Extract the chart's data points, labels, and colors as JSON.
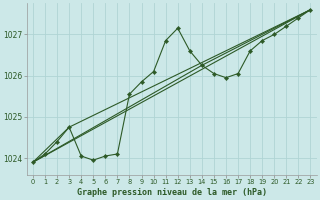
{
  "title": "Graphe pression niveau de la mer (hPa)",
  "bg_color": "#cce8e8",
  "grid_color": "#b0d4d4",
  "line_color": "#2d5a27",
  "marker_color": "#2d5a27",
  "xlim": [
    -0.5,
    23.5
  ],
  "ylim": [
    1023.6,
    1027.75
  ],
  "yticks": [
    1024,
    1025,
    1026,
    1027
  ],
  "xticks": [
    0,
    1,
    2,
    3,
    4,
    5,
    6,
    7,
    8,
    9,
    10,
    11,
    12,
    13,
    14,
    15,
    16,
    17,
    18,
    19,
    20,
    21,
    22,
    23
  ],
  "main_line": [
    [
      0,
      1023.9
    ],
    [
      1,
      1024.1
    ],
    [
      2,
      1024.4
    ],
    [
      3,
      1024.75
    ],
    [
      4,
      1024.05
    ],
    [
      5,
      1023.95
    ],
    [
      6,
      1024.05
    ],
    [
      7,
      1024.1
    ],
    [
      8,
      1025.55
    ],
    [
      9,
      1025.85
    ],
    [
      10,
      1026.1
    ],
    [
      11,
      1026.85
    ],
    [
      12,
      1027.15
    ],
    [
      13,
      1026.6
    ],
    [
      14,
      1026.25
    ],
    [
      15,
      1026.05
    ],
    [
      16,
      1025.95
    ],
    [
      17,
      1026.05
    ],
    [
      18,
      1026.6
    ],
    [
      19,
      1026.85
    ],
    [
      20,
      1027.0
    ],
    [
      21,
      1027.2
    ],
    [
      22,
      1027.4
    ],
    [
      23,
      1027.6
    ]
  ],
  "line2": [
    [
      0,
      1023.9
    ],
    [
      23,
      1027.6
    ]
  ],
  "line3": [
    [
      0,
      1023.9
    ],
    [
      14,
      1026.25
    ],
    [
      23,
      1027.6
    ]
  ],
  "line4": [
    [
      0,
      1023.9
    ],
    [
      3,
      1024.75
    ],
    [
      23,
      1027.6
    ]
  ]
}
